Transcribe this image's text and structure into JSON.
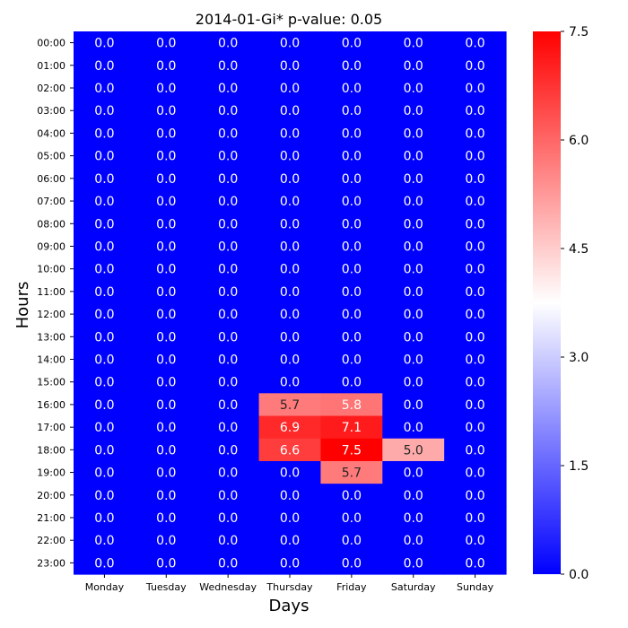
{
  "chart_data": {
    "type": "heatmap",
    "title": "2014-01-Gi* p-value: 0.05",
    "xlabel": "Days",
    "ylabel": "Hours",
    "x_categories": [
      "Monday",
      "Tuesday",
      "Wednesday",
      "Thursday",
      "Friday",
      "Saturday",
      "Sunday"
    ],
    "y_categories": [
      "00:00",
      "01:00",
      "02:00",
      "03:00",
      "04:00",
      "05:00",
      "06:00",
      "07:00",
      "08:00",
      "09:00",
      "10:00",
      "11:00",
      "12:00",
      "13:00",
      "14:00",
      "15:00",
      "16:00",
      "17:00",
      "18:00",
      "19:00",
      "20:00",
      "21:00",
      "22:00",
      "23:00"
    ],
    "values": [
      [
        0.0,
        0.0,
        0.0,
        0.0,
        0.0,
        0.0,
        0.0
      ],
      [
        0.0,
        0.0,
        0.0,
        0.0,
        0.0,
        0.0,
        0.0
      ],
      [
        0.0,
        0.0,
        0.0,
        0.0,
        0.0,
        0.0,
        0.0
      ],
      [
        0.0,
        0.0,
        0.0,
        0.0,
        0.0,
        0.0,
        0.0
      ],
      [
        0.0,
        0.0,
        0.0,
        0.0,
        0.0,
        0.0,
        0.0
      ],
      [
        0.0,
        0.0,
        0.0,
        0.0,
        0.0,
        0.0,
        0.0
      ],
      [
        0.0,
        0.0,
        0.0,
        0.0,
        0.0,
        0.0,
        0.0
      ],
      [
        0.0,
        0.0,
        0.0,
        0.0,
        0.0,
        0.0,
        0.0
      ],
      [
        0.0,
        0.0,
        0.0,
        0.0,
        0.0,
        0.0,
        0.0
      ],
      [
        0.0,
        0.0,
        0.0,
        0.0,
        0.0,
        0.0,
        0.0
      ],
      [
        0.0,
        0.0,
        0.0,
        0.0,
        0.0,
        0.0,
        0.0
      ],
      [
        0.0,
        0.0,
        0.0,
        0.0,
        0.0,
        0.0,
        0.0
      ],
      [
        0.0,
        0.0,
        0.0,
        0.0,
        0.0,
        0.0,
        0.0
      ],
      [
        0.0,
        0.0,
        0.0,
        0.0,
        0.0,
        0.0,
        0.0
      ],
      [
        0.0,
        0.0,
        0.0,
        0.0,
        0.0,
        0.0,
        0.0
      ],
      [
        0.0,
        0.0,
        0.0,
        0.0,
        0.0,
        0.0,
        0.0
      ],
      [
        0.0,
        0.0,
        0.0,
        5.7,
        5.8,
        0.0,
        0.0
      ],
      [
        0.0,
        0.0,
        0.0,
        6.9,
        7.1,
        0.0,
        0.0
      ],
      [
        0.0,
        0.0,
        0.0,
        6.6,
        7.5,
        5.0,
        0.0
      ],
      [
        0.0,
        0.0,
        0.0,
        0.0,
        5.7,
        0.0,
        0.0
      ],
      [
        0.0,
        0.0,
        0.0,
        0.0,
        0.0,
        0.0,
        0.0
      ],
      [
        0.0,
        0.0,
        0.0,
        0.0,
        0.0,
        0.0,
        0.0
      ],
      [
        0.0,
        0.0,
        0.0,
        0.0,
        0.0,
        0.0,
        0.0
      ],
      [
        0.0,
        0.0,
        0.0,
        0.0,
        0.0,
        0.0,
        0.0
      ]
    ],
    "value_format": "0.0",
    "colormap": "bwr",
    "colormap_stops": [
      "#0000ff",
      "#ffffff",
      "#ff0000"
    ],
    "vlim": [
      0.0,
      7.5
    ],
    "colorbar_ticks": [
      0.0,
      1.5,
      3.0,
      4.5,
      6.0,
      7.5
    ],
    "colorbar_tick_labels": [
      "0.0",
      "1.5",
      "3.0",
      "4.5",
      "6.0",
      "7.5"
    ],
    "grid": false,
    "colorbar": "right"
  }
}
